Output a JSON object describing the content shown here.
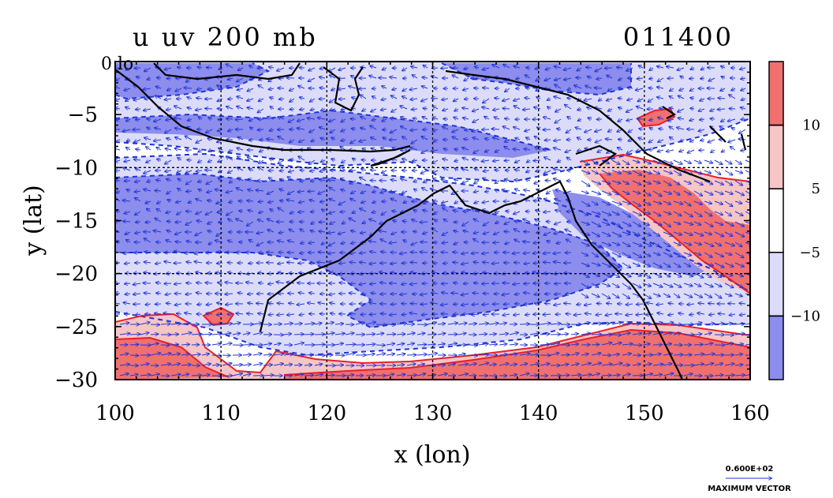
{
  "chart_data": {
    "type": "contour-vector-map",
    "title": "u uv 200 mb",
    "date_label": "011400",
    "xlabel": "x (lon)",
    "ylabel": "y (lat)",
    "x_ticks": [
      "100",
      "110",
      "120",
      "130",
      "140",
      "150",
      "160"
    ],
    "y_ticks": [
      "0",
      "−5",
      "−10",
      "−15",
      "−20",
      "−25",
      "−30"
    ],
    "xlim": [
      100,
      160
    ],
    "ylim": [
      -30,
      0
    ],
    "gridlines_x": [
      110,
      120,
      130,
      140,
      150
    ],
    "gridlines_y": [
      -10,
      -20
    ],
    "colorbar": {
      "tick_labels": [
        "10",
        "5",
        "−5",
        "−10"
      ],
      "levels": [
        -10,
        -5,
        5,
        10
      ],
      "colors": [
        "#8d8ded",
        "#dcdcfa",
        "#ffffff",
        "#f6c5c5",
        "#f07070"
      ]
    },
    "vector_key": {
      "value_label": "0.600E+02",
      "caption": "MAXIMUM VECTOR"
    },
    "corner_label": "0 lo"
  }
}
